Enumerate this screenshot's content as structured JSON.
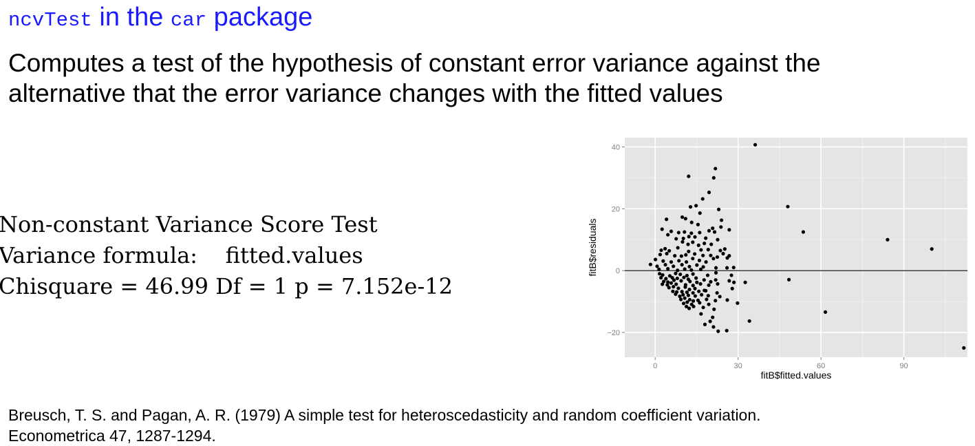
{
  "title": {
    "code1": "ncvTest",
    "text1": " in the ",
    "code2": "car",
    "text2": " package"
  },
  "description": {
    "line1": "Computes a test of the hypothesis of constant error variance against the",
    "line2": "alternative that the error variance changes with the fitted values"
  },
  "test_output": {
    "line1": "Non-constant Variance Score Test",
    "line2": "Variance formula:    fitted.values",
    "line3": "Chisquare = 46.99 Df = 1 p = 7.152e-12"
  },
  "citation": {
    "line1": "Breusch, T. S. and Pagan, A. R. (1979) A simple test for heteroscedasticity and random coefficient variation.",
    "line2": "Econometrica 47, 1287-1294."
  },
  "chart_data": {
    "type": "scatter",
    "title": "",
    "xlabel": "fitB$fitted.values",
    "ylabel": "fitB$residuals",
    "xlim": [
      -11,
      113
    ],
    "ylim": [
      -28,
      43
    ],
    "xticks": [
      0,
      30,
      60,
      90
    ],
    "yticks": [
      -20,
      0,
      20,
      40
    ],
    "xtick_labels": [
      "0",
      "30",
      "60",
      "90"
    ],
    "ytick_labels": [
      "−20",
      "0",
      "20",
      "40"
    ],
    "hline": 0,
    "grid": true,
    "background": "#e5e5e5",
    "point_color": "#000000",
    "points": [
      [
        36.2,
        40.7
      ],
      [
        21.8,
        33.0
      ],
      [
        21.2,
        30.0
      ],
      [
        12.1,
        30.5
      ],
      [
        19.5,
        25.3
      ],
      [
        17.2,
        23.2
      ],
      [
        14.8,
        21.0
      ],
      [
        12.8,
        20.6
      ],
      [
        23.0,
        19.8
      ],
      [
        16.2,
        18.6
      ],
      [
        24.0,
        16.3
      ],
      [
        9.8,
        17.3
      ],
      [
        4.1,
        16.6
      ],
      [
        13.2,
        15.6
      ],
      [
        11.0,
        16.8
      ],
      [
        15.5,
        14.9
      ],
      [
        23.8,
        14.1
      ],
      [
        20.8,
        13.7
      ],
      [
        26.8,
        13.2
      ],
      [
        2.5,
        13.4
      ],
      [
        5.8,
        12.7
      ],
      [
        8.5,
        12.3
      ],
      [
        10.6,
        12.5
      ],
      [
        13.1,
        12.1
      ],
      [
        16.1,
        12.3
      ],
      [
        19.5,
        12.9
      ],
      [
        21.5,
        12.5
      ],
      [
        4.6,
        11.6
      ],
      [
        12.2,
        11.0
      ],
      [
        14.4,
        10.9
      ],
      [
        7.6,
        10.3
      ],
      [
        10.2,
        10.4
      ],
      [
        18.3,
        10.5
      ],
      [
        22.6,
        10.0
      ],
      [
        9.9,
        9.3
      ],
      [
        11.9,
        8.5
      ],
      [
        13.6,
        9.2
      ],
      [
        15.7,
        8.2
      ],
      [
        17.8,
        8.8
      ],
      [
        20.3,
        8.5
      ],
      [
        3.6,
        7.1
      ],
      [
        2.2,
        6.6
      ],
      [
        5.1,
        6.4
      ],
      [
        8.2,
        7.4
      ],
      [
        12.1,
        6.2
      ],
      [
        16.6,
        6.7
      ],
      [
        19.2,
        6.8
      ],
      [
        23.6,
        6.5
      ],
      [
        25.2,
        7.0
      ],
      [
        1.8,
        5.2
      ],
      [
        4.2,
        5.5
      ],
      [
        7.1,
        4.8
      ],
      [
        9.5,
        4.7
      ],
      [
        11.1,
        5.1
      ],
      [
        14.3,
        5.4
      ],
      [
        17.3,
        4.9
      ],
      [
        20.1,
        4.9
      ],
      [
        22.5,
        4.4
      ],
      [
        24.6,
        5.5
      ],
      [
        26.8,
        4.8
      ],
      [
        0.1,
        3.6
      ],
      [
        2.9,
        3.1
      ],
      [
        5.8,
        2.8
      ],
      [
        8.6,
        3.2
      ],
      [
        11.3,
        2.8
      ],
      [
        13.6,
        3.9
      ],
      [
        16.0,
        3.3
      ],
      [
        18.4,
        2.8
      ],
      [
        21.1,
        3.9
      ],
      [
        26.1,
        4.1
      ],
      [
        -1.7,
        2.0
      ],
      [
        0.7,
        1.4
      ],
      [
        3.7,
        1.9
      ],
      [
        6.6,
        1.4
      ],
      [
        9.7,
        1.9
      ],
      [
        12.4,
        1.3
      ],
      [
        15.1,
        1.8
      ],
      [
        17.4,
        1.2
      ],
      [
        22.0,
        0.9
      ],
      [
        26.0,
        0.9
      ],
      [
        28.4,
        1.0
      ],
      [
        1.4,
        0.4
      ],
      [
        4.6,
        0.6
      ],
      [
        8.1,
        0.1
      ],
      [
        10.7,
        0.5
      ],
      [
        13.1,
        0.2
      ],
      [
        16.5,
        0.4
      ],
      [
        1.6,
        -1.0
      ],
      [
        2.7,
        -1.4
      ],
      [
        5.3,
        -1.7
      ],
      [
        7.4,
        -0.9
      ],
      [
        9.1,
        -1.2
      ],
      [
        11.5,
        -1.6
      ],
      [
        13.7,
        -1.1
      ],
      [
        19.0,
        -1.5
      ],
      [
        22.0,
        -0.7
      ],
      [
        27.6,
        -1.5
      ],
      [
        2.1,
        -2.3
      ],
      [
        3.9,
        -2.6
      ],
      [
        6.2,
        -2.3
      ],
      [
        8.0,
        -2.5
      ],
      [
        10.4,
        -2.2
      ],
      [
        12.0,
        -2.8
      ],
      [
        14.8,
        -2.4
      ],
      [
        17.7,
        -3.0
      ],
      [
        21.9,
        -3.0
      ],
      [
        3.1,
        -3.5
      ],
      [
        4.6,
        -3.7
      ],
      [
        6.8,
        -3.1
      ],
      [
        9.4,
        -3.3
      ],
      [
        12.6,
        -3.5
      ],
      [
        15.1,
        -3.8
      ],
      [
        20.1,
        -3.6
      ],
      [
        26.8,
        -3.3
      ],
      [
        2.6,
        -4.4
      ],
      [
        4.4,
        -4.6
      ],
      [
        5.8,
        -4.0
      ],
      [
        7.6,
        -4.4
      ],
      [
        11.0,
        -4.6
      ],
      [
        13.7,
        -4.8
      ],
      [
        16.4,
        -4.3
      ],
      [
        19.4,
        -4.7
      ],
      [
        22.6,
        -4.3
      ],
      [
        28.5,
        -3.8
      ],
      [
        32.6,
        -3.8
      ],
      [
        5.0,
        -5.5
      ],
      [
        6.6,
        -5.2
      ],
      [
        8.4,
        -5.7
      ],
      [
        10.9,
        -5.3
      ],
      [
        12.4,
        -6.1
      ],
      [
        14.4,
        -5.8
      ],
      [
        17.8,
        -6.4
      ],
      [
        27.9,
        -5.8
      ],
      [
        6.4,
        -6.7
      ],
      [
        7.8,
        -6.9
      ],
      [
        9.7,
        -6.8
      ],
      [
        11.5,
        -7.0
      ],
      [
        13.7,
        -7.2
      ],
      [
        15.8,
        -6.7
      ],
      [
        18.3,
        -6.5
      ],
      [
        22.4,
        -7.2
      ],
      [
        7.4,
        -7.6
      ],
      [
        8.9,
        -8.3
      ],
      [
        10.1,
        -7.8
      ],
      [
        12.0,
        -8.0
      ],
      [
        14.5,
        -8.2
      ],
      [
        16.8,
        -7.8
      ],
      [
        19.2,
        -8.1
      ],
      [
        23.4,
        -8.4
      ],
      [
        9.3,
        -9.3
      ],
      [
        10.7,
        -8.9
      ],
      [
        12.5,
        -9.4
      ],
      [
        13.8,
        -9.8
      ],
      [
        15.5,
        -9.6
      ],
      [
        18.6,
        -9.3
      ],
      [
        21.8,
        -9.7
      ],
      [
        26.1,
        -9.5
      ],
      [
        29.8,
        -10.5
      ],
      [
        10.3,
        -10.6
      ],
      [
        11.6,
        -10.2
      ],
      [
        13.2,
        -10.9
      ],
      [
        16.1,
        -10.4
      ],
      [
        19.4,
        -10.9
      ],
      [
        11.3,
        -11.6
      ],
      [
        12.3,
        -12.2
      ],
      [
        13.9,
        -11.6
      ],
      [
        17.4,
        -11.9
      ],
      [
        21.3,
        -12.5
      ],
      [
        16.6,
        -14.0
      ],
      [
        20.8,
        -15.1
      ],
      [
        19.9,
        -16.4
      ],
      [
        34.1,
        -16.3
      ],
      [
        18.0,
        -17.4
      ],
      [
        21.1,
        -18.2
      ],
      [
        25.9,
        -19.4
      ],
      [
        22.8,
        -19.6
      ],
      [
        48.0,
        20.7
      ],
      [
        53.6,
        12.5
      ],
      [
        48.4,
        -2.9
      ],
      [
        84.1,
        10.0
      ],
      [
        100.1,
        7.0
      ],
      [
        61.6,
        -13.4
      ],
      [
        111.7,
        -25.0
      ]
    ]
  }
}
